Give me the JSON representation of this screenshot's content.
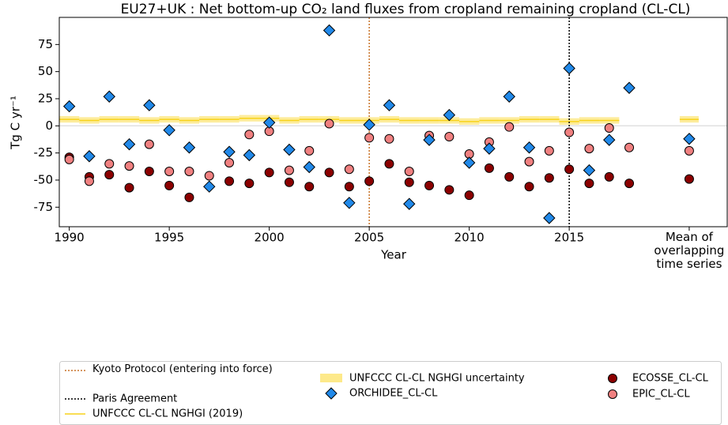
{
  "chart_data": {
    "type": "scatter",
    "title": "EU27+UK : Net bottom-up CO₂ land fluxes from cropland remaining cropland (CL-CL)",
    "xlabel": "Year",
    "ylabel": "Tg C yr⁻¹",
    "xlim": [
      1989.5,
      2022.9
    ],
    "ylim": [
      -93,
      100
    ],
    "xticks": [
      1990,
      1995,
      2000,
      2005,
      2010,
      2015,
      {
        "value": 2021,
        "label": "Mean of overlapping time series"
      }
    ],
    "yticks": [
      -75,
      -50,
      -25,
      0,
      25,
      50,
      75
    ],
    "hline": 0,
    "vlines": [
      {
        "name": "Kyoto Protocol (entering into force)",
        "x": 2005,
        "color": "#c8742a"
      },
      {
        "name": "Paris Agreement",
        "x": 2015,
        "color": "#000000"
      }
    ],
    "reference": {
      "name": "UNFCCC CL-CL NGHGI (2019)",
      "band_name": "UNFCCC CL-CL NGHGI uncertainty",
      "color": "#f7d21a",
      "band_color": "#fde98a",
      "x": [
        1990,
        1991,
        1992,
        1993,
        1994,
        1995,
        1996,
        1997,
        1998,
        1999,
        2000,
        2001,
        2002,
        2003,
        2004,
        2005,
        2006,
        2007,
        2008,
        2009,
        2010,
        2011,
        2012,
        2013,
        2014,
        2015,
        2016,
        2017
      ],
      "values": [
        6,
        5,
        6,
        6,
        5,
        6,
        5,
        6,
        6,
        7,
        7,
        5,
        6,
        6,
        5,
        5,
        6,
        5,
        5,
        5,
        4,
        5,
        5,
        6,
        6,
        4,
        5,
        5
      ],
      "uncertainty": 3,
      "mean": 6
    },
    "series": [
      {
        "name": "ORCHIDEE_CL-CL",
        "color": "#2189e9",
        "marker": "diamond",
        "x": [
          1990,
          1991,
          1992,
          1993,
          1994,
          1995,
          1996,
          1997,
          1998,
          1999,
          2000,
          2001,
          2002,
          2003,
          2004,
          2005,
          2006,
          2007,
          2008,
          2009,
          2010,
          2011,
          2012,
          2013,
          2014,
          2015,
          2016,
          2017,
          2018
        ],
        "values": [
          18,
          -28,
          27,
          -17,
          19,
          -4,
          -20,
          -56,
          -24,
          -27,
          3,
          -22,
          -38,
          88,
          -71,
          1,
          19,
          -72,
          -13,
          10,
          -34,
          -21,
          27,
          -20,
          -85,
          53,
          -41,
          -13,
          35
        ],
        "mean": -12
      },
      {
        "name": "ECOSSE_CL-CL",
        "color": "#8b0000",
        "marker": "circle",
        "x": [
          1990,
          1991,
          1992,
          1993,
          1994,
          1995,
          1996,
          1997,
          1998,
          1999,
          2000,
          2001,
          2002,
          2003,
          2004,
          2005,
          2006,
          2007,
          2008,
          2009,
          2010,
          2011,
          2012,
          2013,
          2014,
          2015,
          2016,
          2017,
          2018
        ],
        "values": [
          -29,
          -47,
          -45,
          -57,
          -42,
          -55,
          -66,
          null,
          -51,
          -53,
          -43,
          -52,
          -56,
          -43,
          -56,
          -51,
          -35,
          -52,
          -55,
          -59,
          -64,
          -39,
          -47,
          -56,
          -48,
          -40,
          -53,
          -47,
          -53
        ],
        "mean": -49
      },
      {
        "name": "EPIC_CL-CL",
        "color": "#f08080",
        "marker": "circle",
        "x": [
          1990,
          1991,
          1992,
          1993,
          1994,
          1995,
          1996,
          1997,
          1998,
          1999,
          2000,
          2001,
          2002,
          2003,
          2004,
          2005,
          2006,
          2007,
          2008,
          2009,
          2010,
          2011,
          2012,
          2013,
          2014,
          2015,
          2016,
          2017,
          2018
        ],
        "values": [
          -31,
          -51,
          -35,
          -37,
          -17,
          -42,
          -42,
          -46,
          -34,
          -8,
          -5,
          -41,
          -23,
          2,
          -40,
          -11,
          -12,
          -42,
          -9,
          -10,
          -26,
          -15,
          -1,
          -33,
          -23,
          -6,
          -21,
          -2,
          -20
        ],
        "mean": -23
      }
    ]
  }
}
